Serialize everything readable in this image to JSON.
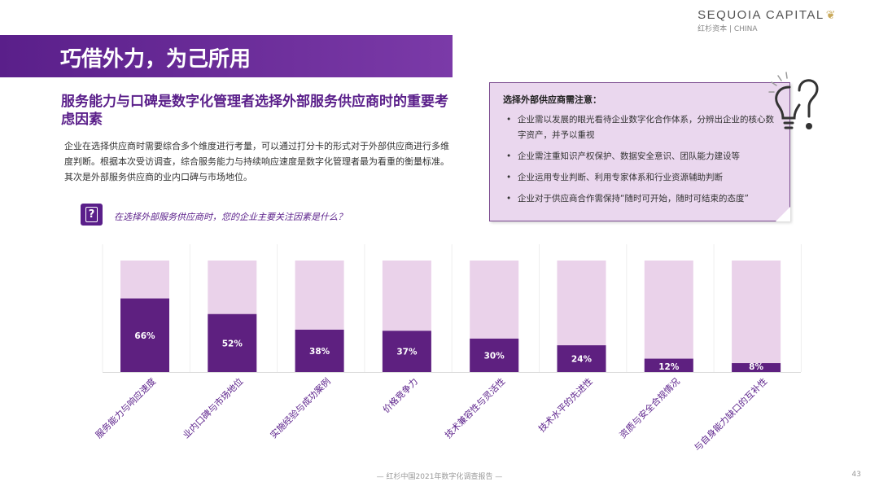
{
  "brand": {
    "name": "SEQUOIA CAPITAL",
    "sub": "红杉资本 | CHINA"
  },
  "header": {
    "title": "巧借外力，为己所用"
  },
  "subtitle": "服务能力与口碑是数字化管理者选择外部服务供应商时的重要考虑因素",
  "paragraph": "企业在选择供应商时需要综合多个维度进行考量，可以通过打分卡的形式对于外部供应商进行多维度判断。根据本次受访调查，综合服务能力与持续响应速度是数字化管理者最为看重的衡量标准。其次是外部服务供应商的业内口碑与市场地位。",
  "question": {
    "icon": "question-box-icon",
    "icon_glyph": "?",
    "text": "在选择外部服务供应商时，您的企业主要关注因素是什么？"
  },
  "note": {
    "title": "选择外部供应商需注意：",
    "items": [
      "企业需以发展的眼光看待企业数字化合作体系，分辨出企业的核心数字资产，并予以重视",
      "企业需注重知识产权保护、数据安全意识、团队能力建设等",
      "企业运用专业判断、利用专家体系和行业资源辅助判断",
      "企业对于供应商合作需保持“随时可开始，随时可结束的态度”"
    ]
  },
  "colors": {
    "accent": "#5a1f8a",
    "bar_fill": "#5e2080",
    "bar_bg": "#ead2ea",
    "note_bg": "#ead7ee"
  },
  "chart_data": {
    "type": "bar",
    "categories": [
      "服务能力与响应速度",
      "业内口碑与市场地位",
      "实施经验与成功案例",
      "价格竞争力",
      "技术兼容性与灵活性",
      "技术水平的先进性",
      "资质与安全合规情况",
      "与自身能力缺口的互补性"
    ],
    "values": [
      66,
      52,
      38,
      37,
      30,
      24,
      12,
      8
    ],
    "value_labels": [
      "66%",
      "52%",
      "38%",
      "37%",
      "30%",
      "24%",
      "12%",
      "8%"
    ],
    "ylim": [
      0,
      100
    ],
    "grid": false,
    "background_bars": true
  },
  "footer": {
    "text": "— 红杉中国2021年数字化调查报告 —",
    "page": "43"
  }
}
